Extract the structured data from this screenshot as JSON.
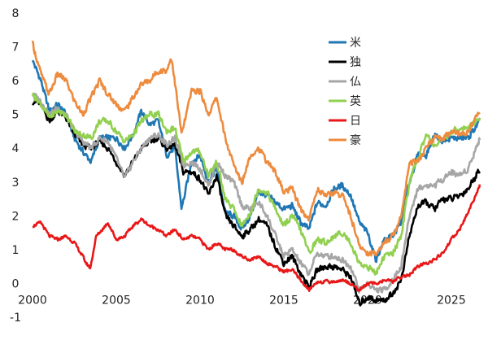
{
  "chart_data": {
    "type": "line",
    "title": "",
    "xlabel": "",
    "ylabel": "",
    "xlim": [
      2000,
      2026.8
    ],
    "ylim": [
      -1,
      8
    ],
    "x_ticks": [
      "2000",
      "2005",
      "2010",
      "2015",
      "2020",
      "2025"
    ],
    "y_ticks": [
      "8",
      "7",
      "6",
      "5",
      "4",
      "3",
      "2",
      "1",
      "0",
      "-1"
    ],
    "grid": false,
    "legend_position": "top-right",
    "series": [
      {
        "name": "米",
        "color": "#1f77b4",
        "x": [
          2000,
          2000.5,
          2001,
          2001.5,
          2002,
          2002.5,
          2003,
          2003.5,
          2004,
          2004.5,
          2005,
          2005.5,
          2006,
          2006.5,
          2007,
          2007.5,
          2008,
          2008.5,
          2008.9,
          2009.5,
          2010,
          2010.5,
          2011,
          2011.5,
          2012,
          2012.5,
          2013,
          2013.5,
          2014,
          2014.5,
          2015,
          2015.5,
          2016,
          2016.5,
          2017,
          2017.5,
          2018,
          2018.5,
          2019,
          2019.5,
          2020,
          2020.5,
          2021,
          2021.5,
          2022,
          2022.5,
          2023,
          2023.5,
          2024,
          2024.5,
          2025,
          2025.5,
          2026,
          2026.7
        ],
        "y": [
          6.6,
          6.0,
          5.1,
          5.3,
          5.0,
          4.3,
          3.9,
          3.6,
          4.3,
          4.3,
          4.3,
          4.0,
          4.4,
          5.1,
          4.7,
          4.8,
          3.8,
          4.0,
          2.2,
          3.6,
          3.8,
          3.0,
          3.4,
          2.1,
          2.0,
          1.6,
          2.0,
          2.7,
          2.6,
          2.4,
          2.2,
          2.3,
          1.8,
          1.6,
          2.4,
          2.3,
          2.8,
          2.9,
          2.6,
          1.8,
          1.5,
          0.7,
          1.3,
          1.4,
          1.8,
          3.0,
          3.8,
          3.8,
          4.4,
          4.2,
          4.3,
          4.3,
          4.3,
          4.8
        ]
      },
      {
        "name": "独",
        "color": "#000000",
        "x": [
          2000,
          2000.5,
          2001,
          2001.5,
          2002,
          2002.5,
          2003,
          2003.5,
          2004,
          2004.5,
          2005,
          2005.5,
          2006,
          2006.5,
          2007,
          2007.5,
          2008,
          2008.5,
          2009,
          2009.5,
          2010,
          2010.5,
          2011,
          2011.5,
          2012,
          2012.5,
          2013,
          2013.5,
          2014,
          2014.5,
          2015,
          2015.5,
          2016,
          2016.5,
          2017,
          2017.5,
          2018,
          2018.5,
          2019,
          2019.5,
          2020,
          2020.5,
          2021,
          2021.5,
          2022,
          2022.5,
          2023,
          2023.5,
          2024,
          2024.5,
          2025,
          2025.5,
          2026,
          2026.7
        ],
        "y": [
          5.4,
          5.3,
          4.8,
          5.1,
          4.9,
          4.4,
          4.1,
          4.0,
          4.2,
          4.0,
          3.6,
          3.2,
          3.6,
          4.0,
          4.2,
          4.3,
          4.0,
          4.1,
          3.3,
          3.3,
          3.1,
          2.6,
          3.2,
          2.0,
          1.7,
          1.4,
          1.6,
          1.9,
          1.7,
          1.1,
          0.6,
          0.8,
          0.3,
          -0.1,
          0.4,
          0.5,
          0.5,
          0.4,
          0.2,
          -0.6,
          -0.4,
          -0.5,
          -0.5,
          -0.3,
          0.1,
          1.4,
          2.3,
          2.4,
          2.2,
          2.5,
          2.5,
          2.6,
          2.8,
          3.4
        ]
      },
      {
        "name": "仏",
        "color": "#a6a6a6",
        "x": [
          2000,
          2000.5,
          2001,
          2001.5,
          2002,
          2002.5,
          2003,
          2003.5,
          2004,
          2004.5,
          2005,
          2005.5,
          2006,
          2006.5,
          2007,
          2007.5,
          2008,
          2008.5,
          2009,
          2009.5,
          2010,
          2010.5,
          2011,
          2011.5,
          2012,
          2012.5,
          2013,
          2013.5,
          2014,
          2014.5,
          2015,
          2015.5,
          2016,
          2016.5,
          2017,
          2017.5,
          2018,
          2018.5,
          2019,
          2019.5,
          2020,
          2020.5,
          2021,
          2021.5,
          2022,
          2022.5,
          2023,
          2023.5,
          2024,
          2024.5,
          2025,
          2025.5,
          2026,
          2026.7
        ],
        "y": [
          5.6,
          5.4,
          5.0,
          5.2,
          5.0,
          4.5,
          4.2,
          4.0,
          4.3,
          4.2,
          3.7,
          3.1,
          3.6,
          4.0,
          4.3,
          4.4,
          4.1,
          4.3,
          3.5,
          3.6,
          3.4,
          2.9,
          3.6,
          3.2,
          3.0,
          2.3,
          2.2,
          2.4,
          2.0,
          1.4,
          0.8,
          1.0,
          0.6,
          0.3,
          0.9,
          0.8,
          0.8,
          0.7,
          0.5,
          -0.2,
          0.0,
          -0.2,
          -0.2,
          0.1,
          0.5,
          2.0,
          2.8,
          2.9,
          2.9,
          3.1,
          3.3,
          3.2,
          3.4,
          4.3
        ]
      },
      {
        "name": "英",
        "color": "#92d050",
        "x": [
          2000,
          2000.5,
          2001,
          2001.5,
          2002,
          2002.5,
          2003,
          2003.5,
          2004,
          2004.5,
          2005,
          2005.5,
          2006,
          2006.5,
          2007,
          2007.5,
          2008,
          2008.5,
          2009,
          2009.5,
          2010,
          2010.5,
          2011,
          2011.5,
          2012,
          2012.5,
          2013,
          2013.5,
          2014,
          2014.5,
          2015,
          2015.5,
          2016,
          2016.5,
          2017,
          2017.5,
          2018,
          2018.5,
          2019,
          2019.5,
          2020,
          2020.5,
          2021,
          2021.5,
          2022,
          2022.5,
          2023,
          2023.5,
          2024,
          2024.5,
          2025,
          2025.5,
          2026,
          2026.7
        ],
        "y": [
          5.6,
          5.3,
          4.9,
          5.1,
          5.0,
          4.5,
          4.4,
          4.3,
          4.8,
          4.8,
          4.5,
          4.2,
          4.4,
          4.8,
          5.0,
          5.0,
          4.5,
          4.6,
          3.6,
          3.9,
          3.9,
          3.2,
          3.6,
          2.5,
          2.2,
          1.7,
          2.1,
          2.8,
          2.7,
          2.2,
          1.7,
          2.0,
          1.6,
          0.9,
          1.3,
          1.2,
          1.4,
          1.5,
          1.2,
          0.6,
          0.5,
          0.3,
          0.8,
          0.9,
          1.4,
          3.0,
          3.7,
          4.4,
          4.1,
          4.2,
          4.5,
          4.6,
          4.6,
          4.9
        ]
      },
      {
        "name": "日",
        "color": "#e81818",
        "x": [
          2000,
          2000.5,
          2001,
          2001.5,
          2002,
          2002.5,
          2003,
          2003.2,
          2003.45,
          2003.8,
          2004,
          2004.5,
          2005,
          2005.5,
          2006,
          2006.5,
          2007,
          2007.5,
          2008,
          2008.5,
          2009,
          2009.5,
          2010,
          2010.5,
          2011,
          2011.5,
          2012,
          2012.5,
          2013,
          2013.5,
          2014,
          2014.5,
          2015,
          2015.5,
          2016,
          2016.5,
          2017,
          2017.5,
          2018,
          2018.5,
          2019,
          2019.5,
          2020,
          2020.5,
          2021,
          2021.5,
          2022,
          2022.5,
          2023,
          2023.5,
          2024,
          2024.5,
          2025,
          2025.5,
          2026,
          2026.7
        ],
        "y": [
          1.7,
          1.8,
          1.4,
          1.3,
          1.4,
          1.2,
          0.8,
          0.6,
          0.45,
          1.4,
          1.5,
          1.8,
          1.3,
          1.4,
          1.7,
          1.9,
          1.7,
          1.6,
          1.4,
          1.6,
          1.3,
          1.4,
          1.3,
          1.0,
          1.2,
          1.0,
          1.0,
          0.8,
          0.7,
          0.8,
          0.6,
          0.5,
          0.35,
          0.4,
          0.1,
          -0.2,
          0.05,
          0.05,
          0.05,
          0.1,
          0.0,
          -0.2,
          0.0,
          0.0,
          0.1,
          0.05,
          0.2,
          0.25,
          0.5,
          0.6,
          0.7,
          0.9,
          1.3,
          1.6,
          2.1,
          2.9
        ]
      },
      {
        "name": "豪",
        "color": "#ed8b3e",
        "x": [
          2000,
          2000.5,
          2001,
          2001.5,
          2002,
          2002.5,
          2003,
          2003.5,
          2004,
          2004.5,
          2005,
          2005.5,
          2006,
          2006.5,
          2007,
          2007.5,
          2008,
          2008.3,
          2008.9,
          2009.5,
          2010,
          2010.5,
          2011,
          2011.5,
          2012,
          2012.5,
          2013,
          2013.5,
          2014,
          2014.5,
          2015,
          2015.5,
          2016,
          2016.5,
          2017,
          2017.5,
          2018,
          2018.5,
          2019,
          2019.5,
          2020,
          2020.5,
          2021,
          2021.5,
          2022,
          2022.5,
          2023,
          2023.5,
          2024,
          2024.5,
          2025,
          2025.5,
          2026,
          2026.7
        ],
        "y": [
          7.1,
          6.2,
          5.6,
          6.2,
          6.0,
          5.4,
          5.0,
          5.5,
          6.0,
          5.6,
          5.3,
          5.1,
          5.5,
          5.9,
          6.0,
          6.3,
          6.3,
          6.7,
          4.4,
          5.7,
          5.7,
          5.0,
          5.5,
          4.3,
          3.5,
          3.0,
          3.8,
          4.0,
          3.6,
          3.3,
          2.7,
          2.8,
          2.2,
          1.9,
          2.8,
          2.6,
          2.7,
          2.6,
          2.0,
          1.1,
          0.9,
          0.9,
          1.2,
          1.4,
          2.0,
          3.6,
          3.6,
          4.0,
          4.3,
          4.3,
          4.5,
          4.4,
          4.5,
          5.1
        ]
      }
    ]
  }
}
